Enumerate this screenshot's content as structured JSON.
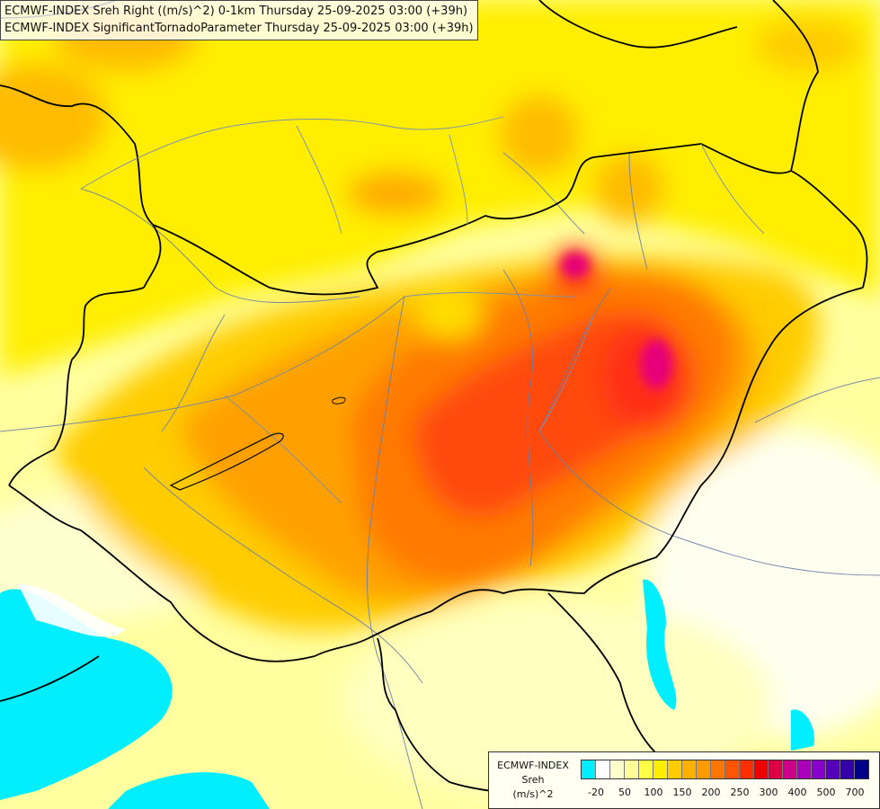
{
  "map": {
    "title_lines": [
      "ECMWF-INDEX Sreh Right ((m/s)^2) 0-1km Thursday 25-09-2025 03:00 (+39h)",
      "ECMWF-INDEX SignificantTornadoParameter Thursday 25-09-2025 03:00 (+39h)"
    ],
    "field_colors": {
      "sea": "#00eeff",
      "very_low": "#ffffff",
      "low": "#ffffb0",
      "medium_low": "#ffff00",
      "medium": "#ffcc00",
      "medium_high": "#ff9900",
      "high": "#ff6a00",
      "very_high": "#ff2a1a",
      "extreme": "#e6007a"
    }
  },
  "legend": {
    "name_lines": [
      "ECMWF-INDEX",
      "Sreh",
      "(m/s)^2"
    ],
    "colors": [
      "#00eeff",
      "#ffffff",
      "#ffffcc",
      "#ffff99",
      "#ffff44",
      "#ffee00",
      "#ffcc00",
      "#ffb000",
      "#ff9900",
      "#ff7700",
      "#ff5500",
      "#ff2e00",
      "#ee0000",
      "#dd0044",
      "#cc0088",
      "#aa00bb",
      "#8800cc",
      "#5500bb",
      "#3300aa",
      "#000088"
    ],
    "ticks": [
      "-20",
      "50",
      "100",
      "150",
      "200",
      "250",
      "300",
      "400",
      "500",
      "700"
    ]
  }
}
